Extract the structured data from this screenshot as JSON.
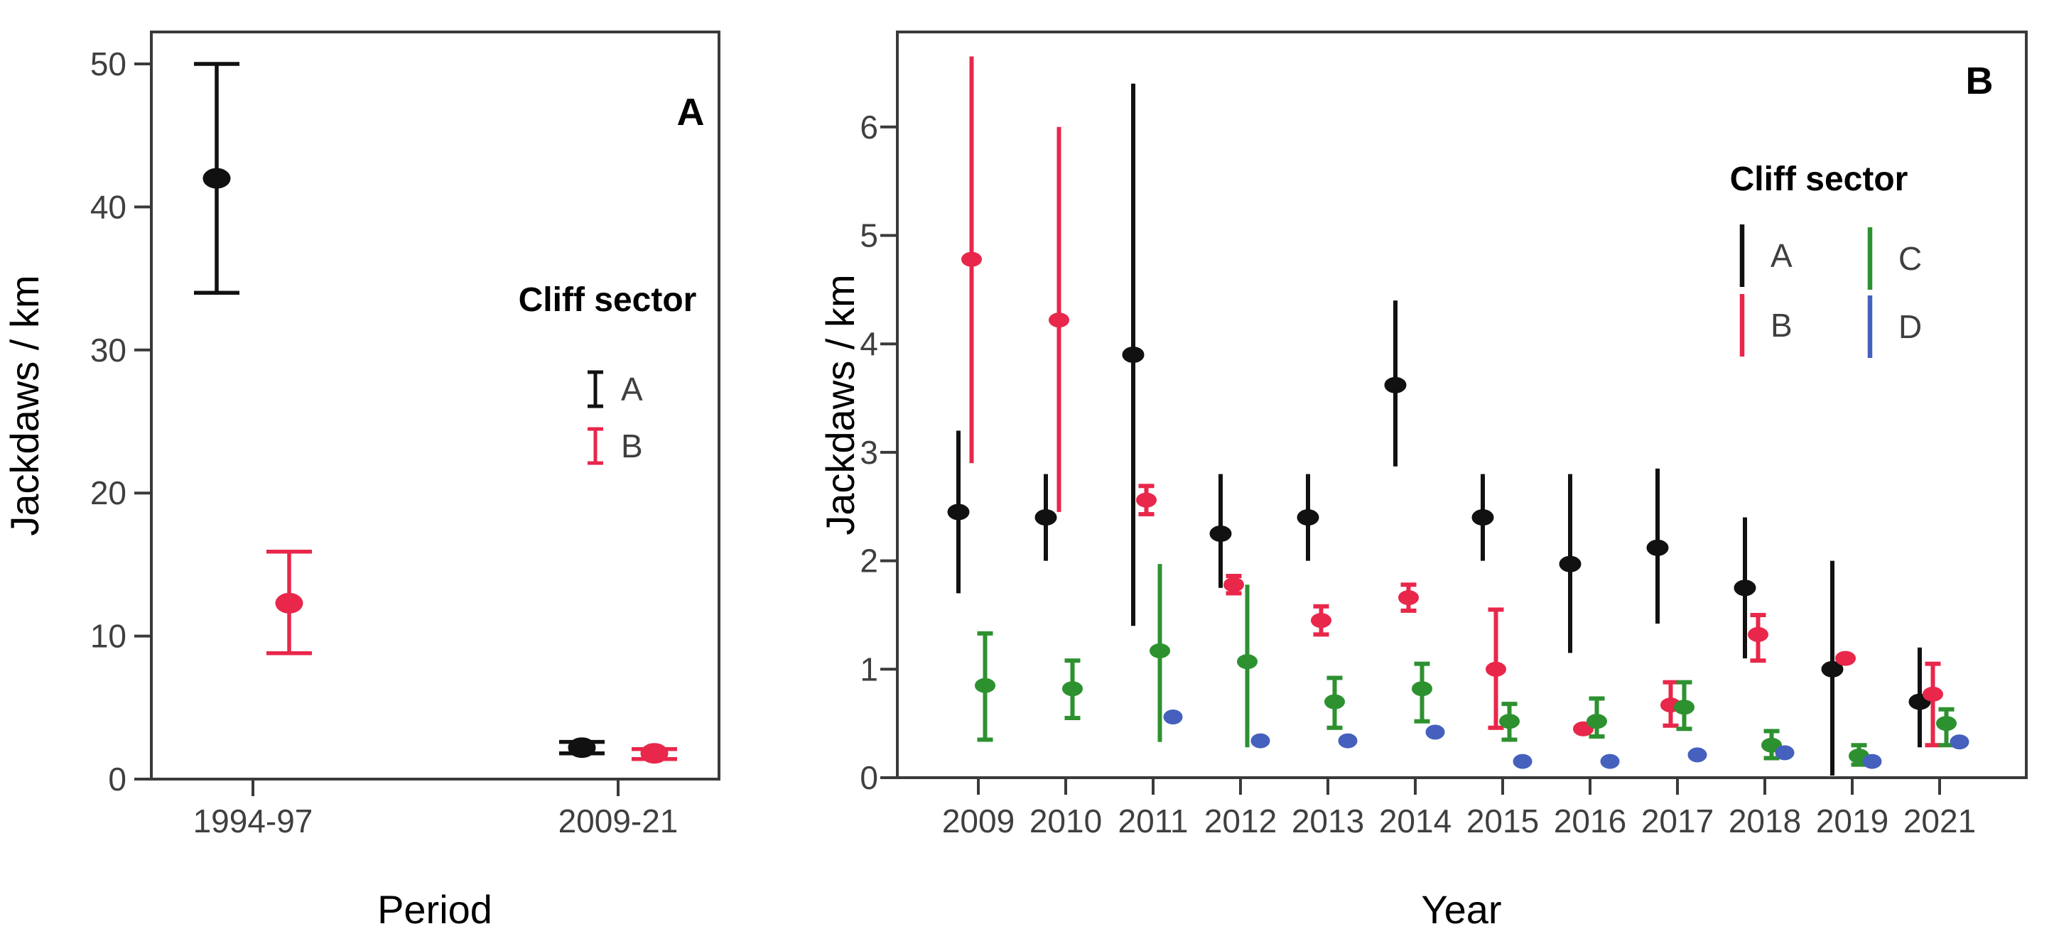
{
  "figure": {
    "background": "#ffffff",
    "axis_color": "#3a3a3a",
    "tick_label_color": "#3f3f3f",
    "title_color": "#000000"
  },
  "chart_data": [
    {
      "type": "scatter",
      "panel_label": "A",
      "xlabel": "Period",
      "ylabel": "Jackdaws / km",
      "ylim": [
        0,
        52.2
      ],
      "yticks": [
        0,
        10,
        20,
        30,
        40,
        50
      ],
      "grid": false,
      "legend": {
        "title": "Cliff sector",
        "position": "inside top-right",
        "entries": [
          {
            "label": "A",
            "color": "#111111"
          },
          {
            "label": "B",
            "color": "#e8274b"
          }
        ]
      },
      "categories": [
        "1994-97",
        "2009-21"
      ],
      "series": [
        {
          "name": "A",
          "color": "#111111",
          "points": [
            {
              "category": "1994-97",
              "y": 42.0,
              "lo": 34.0,
              "hi": 50.0
            },
            {
              "category": "2009-21",
              "y": 2.2,
              "lo": 1.8,
              "hi": 2.6
            }
          ]
        },
        {
          "name": "B",
          "color": "#e8274b",
          "points": [
            {
              "category": "1994-97",
              "y": 12.3,
              "lo": 8.8,
              "hi": 15.9
            },
            {
              "category": "2009-21",
              "y": 1.8,
              "lo": 1.4,
              "hi": 2.1
            }
          ]
        }
      ]
    },
    {
      "type": "scatter",
      "panel_label": "B",
      "xlabel": "Year",
      "ylabel": "Jackdaws / km",
      "ylim": [
        0,
        6.87
      ],
      "yticks": [
        0,
        1,
        2,
        3,
        4,
        5,
        6
      ],
      "grid": false,
      "legend": {
        "title": "Cliff sector",
        "position": "inside top-right",
        "entries": [
          {
            "label": "A",
            "color": "#111111"
          },
          {
            "label": "B",
            "color": "#e8274b"
          },
          {
            "label": "C",
            "color": "#2d9130"
          },
          {
            "label": "D",
            "color": "#4560bd"
          }
        ]
      },
      "categories": [
        "2009",
        "2010",
        "2011",
        "2012",
        "2013",
        "2014",
        "2015",
        "2016",
        "2017",
        "2018",
        "2019",
        "2021"
      ],
      "series": [
        {
          "name": "A",
          "color": "#111111",
          "points": [
            {
              "category": "2009",
              "y": 2.45,
              "lo": 1.7,
              "hi": 3.2
            },
            {
              "category": "2010",
              "y": 2.4,
              "lo": 2.0,
              "hi": 2.8
            },
            {
              "category": "2011",
              "y": 3.9,
              "lo": 1.4,
              "hi": 6.4
            },
            {
              "category": "2012",
              "y": 2.25,
              "lo": 1.75,
              "hi": 2.8
            },
            {
              "category": "2013",
              "y": 2.4,
              "lo": 2.0,
              "hi": 2.8
            },
            {
              "category": "2014",
              "y": 3.62,
              "lo": 2.87,
              "hi": 4.4
            },
            {
              "category": "2015",
              "y": 2.4,
              "lo": 2.0,
              "hi": 2.8
            },
            {
              "category": "2016",
              "y": 1.97,
              "lo": 1.15,
              "hi": 2.8
            },
            {
              "category": "2017",
              "y": 2.12,
              "lo": 1.42,
              "hi": 2.85
            },
            {
              "category": "2018",
              "y": 1.75,
              "lo": 1.1,
              "hi": 2.4
            },
            {
              "category": "2019",
              "y": 1.0,
              "lo": 0.02,
              "hi": 2.0
            },
            {
              "category": "2021",
              "y": 0.7,
              "lo": 0.28,
              "hi": 1.2
            }
          ]
        },
        {
          "name": "B",
          "color": "#e8274b",
          "points": [
            {
              "category": "2009",
              "y": 4.78,
              "lo": 2.9,
              "hi": 6.65
            },
            {
              "category": "2010",
              "y": 4.22,
              "lo": 2.45,
              "hi": 6.0
            },
            {
              "category": "2011",
              "y": 2.56,
              "lo": 2.43,
              "hi": 2.69
            },
            {
              "category": "2012",
              "y": 1.78,
              "lo": 1.7,
              "hi": 1.86
            },
            {
              "category": "2013",
              "y": 1.45,
              "lo": 1.32,
              "hi": 1.58
            },
            {
              "category": "2014",
              "y": 1.66,
              "lo": 1.54,
              "hi": 1.78
            },
            {
              "category": "2015",
              "y": 1.0,
              "lo": 0.46,
              "hi": 1.55
            },
            {
              "category": "2016",
              "y": 0.45,
              "lo": 0.45,
              "hi": 0.45
            },
            {
              "category": "2017",
              "y": 0.67,
              "lo": 0.48,
              "hi": 0.88
            },
            {
              "category": "2018",
              "y": 1.32,
              "lo": 1.08,
              "hi": 1.5
            },
            {
              "category": "2019",
              "y": 1.1,
              "lo": 1.1,
              "hi": 1.1
            },
            {
              "category": "2021",
              "y": 0.77,
              "lo": 0.3,
              "hi": 1.05
            }
          ]
        },
        {
          "name": "C",
          "color": "#2d9130",
          "points": [
            {
              "category": "2009",
              "y": 0.85,
              "lo": 0.35,
              "hi": 1.33
            },
            {
              "category": "2010",
              "y": 0.82,
              "lo": 0.55,
              "hi": 1.08
            },
            {
              "category": "2011",
              "y": 1.17,
              "lo": 0.33,
              "hi": 1.97
            },
            {
              "category": "2012",
              "y": 1.07,
              "lo": 0.28,
              "hi": 1.78
            },
            {
              "category": "2013",
              "y": 0.7,
              "lo": 0.46,
              "hi": 0.92
            },
            {
              "category": "2014",
              "y": 0.82,
              "lo": 0.52,
              "hi": 1.05
            },
            {
              "category": "2015",
              "y": 0.52,
              "lo": 0.35,
              "hi": 0.68
            },
            {
              "category": "2016",
              "y": 0.52,
              "lo": 0.38,
              "hi": 0.73
            },
            {
              "category": "2017",
              "y": 0.65,
              "lo": 0.45,
              "hi": 0.88
            },
            {
              "category": "2018",
              "y": 0.3,
              "lo": 0.18,
              "hi": 0.43
            },
            {
              "category": "2019",
              "y": 0.2,
              "lo": 0.12,
              "hi": 0.3
            },
            {
              "category": "2021",
              "y": 0.5,
              "lo": 0.3,
              "hi": 0.63
            }
          ]
        },
        {
          "name": "D",
          "color": "#4560bd",
          "points": [
            null,
            null,
            {
              "category": "2011",
              "y": 0.56,
              "lo": 0.56,
              "hi": 0.56
            },
            {
              "category": "2012",
              "y": 0.34,
              "lo": 0.34,
              "hi": 0.34
            },
            {
              "category": "2013",
              "y": 0.34,
              "lo": 0.34,
              "hi": 0.34
            },
            {
              "category": "2014",
              "y": 0.42,
              "lo": 0.42,
              "hi": 0.42
            },
            {
              "category": "2015",
              "y": 0.15,
              "lo": 0.15,
              "hi": 0.15
            },
            {
              "category": "2016",
              "y": 0.15,
              "lo": 0.15,
              "hi": 0.15
            },
            {
              "category": "2017",
              "y": 0.21,
              "lo": 0.21,
              "hi": 0.21
            },
            {
              "category": "2018",
              "y": 0.23,
              "lo": 0.23,
              "hi": 0.23
            },
            {
              "category": "2019",
              "y": 0.15,
              "lo": 0.15,
              "hi": 0.15
            },
            {
              "category": "2021",
              "y": 0.33,
              "lo": 0.33,
              "hi": 0.33
            }
          ]
        }
      ]
    }
  ]
}
